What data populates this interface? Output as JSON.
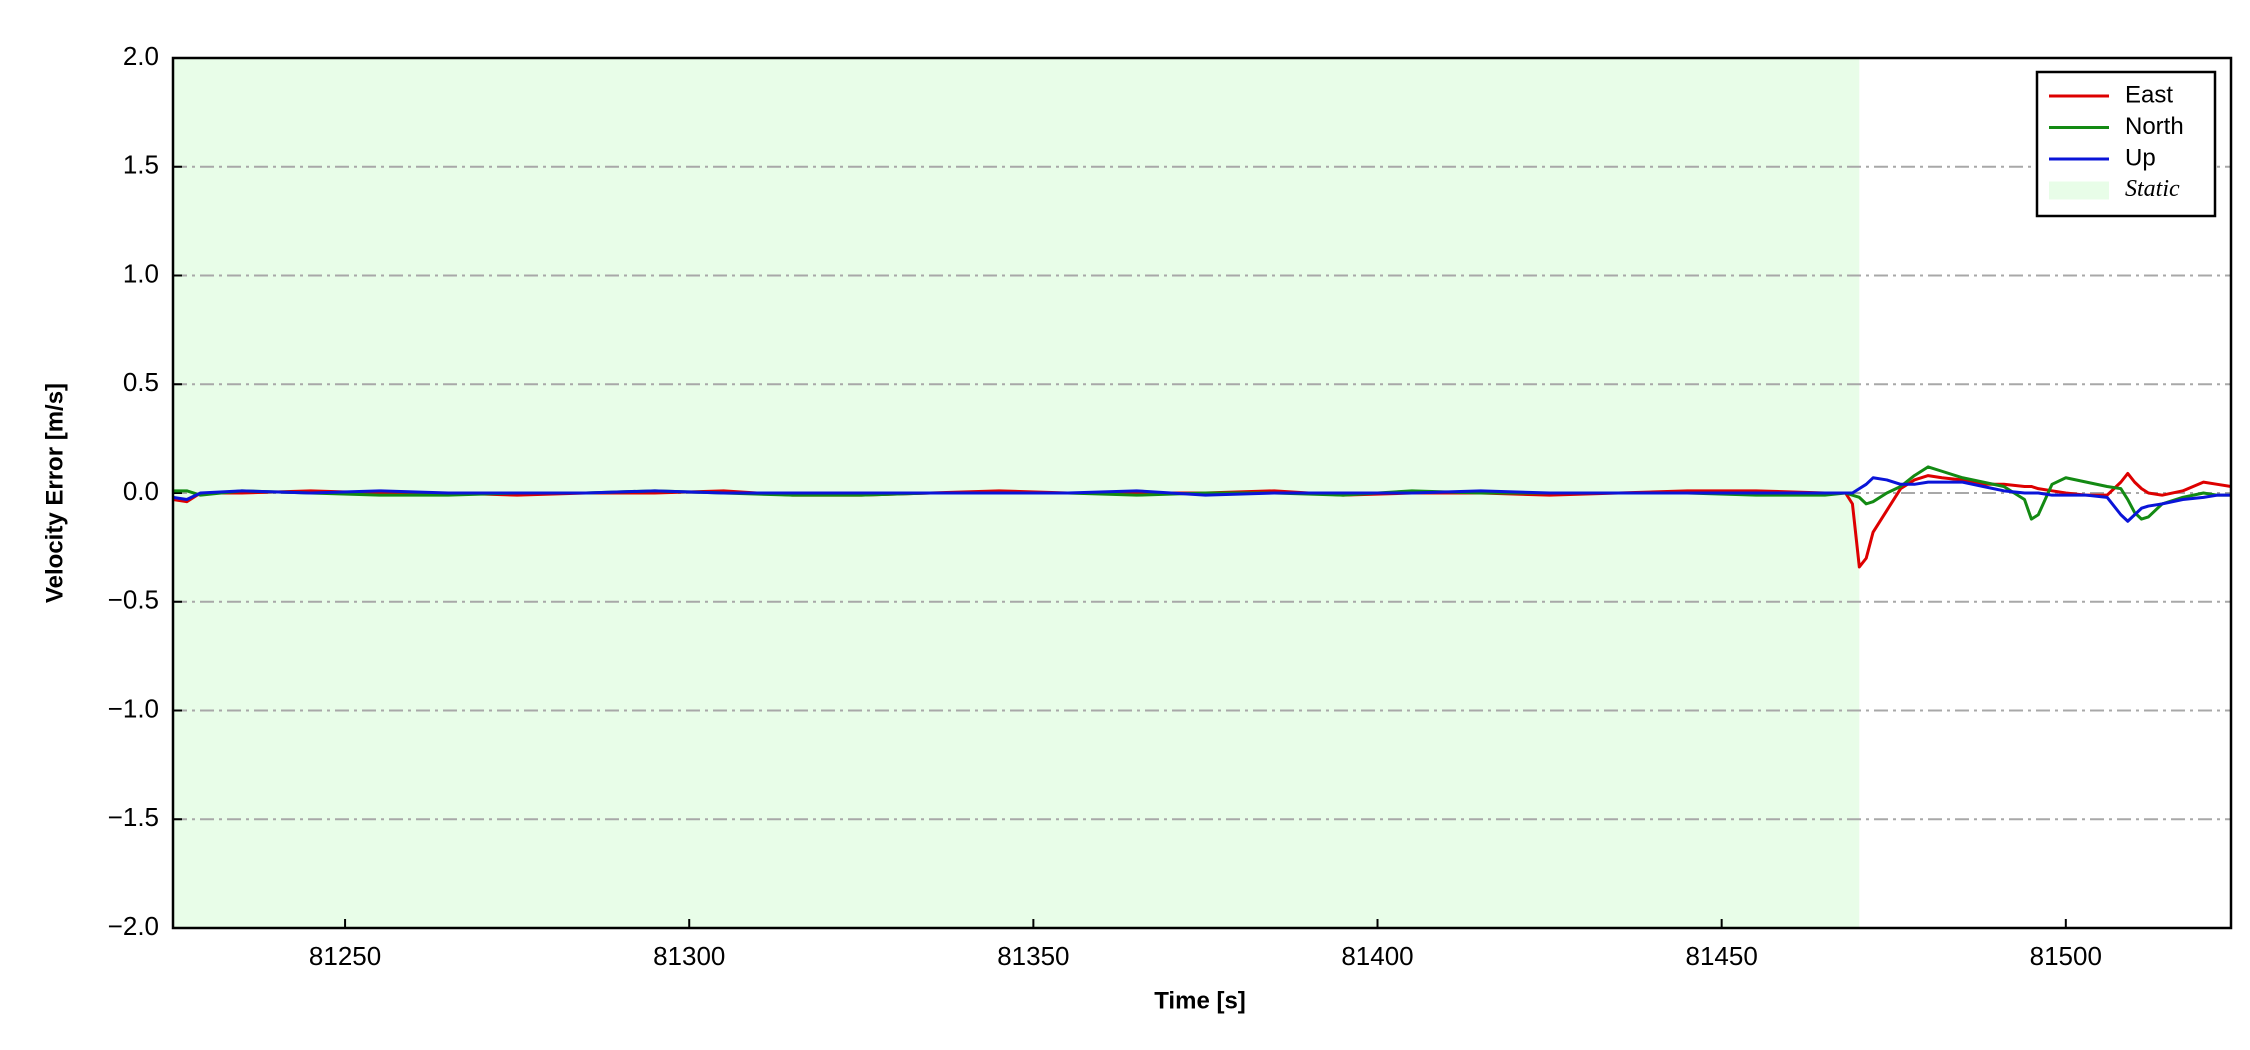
{
  "chart_data": {
    "type": "line",
    "xlabel": "Time [s]",
    "ylabel": "Velocity Error [m/s]",
    "x": [
      81225,
      81227,
      81229,
      81235,
      81245,
      81255,
      81265,
      81275,
      81285,
      81295,
      81305,
      81315,
      81325,
      81335,
      81345,
      81355,
      81365,
      81375,
      81385,
      81395,
      81405,
      81415,
      81425,
      81435,
      81445,
      81455,
      81465,
      81468,
      81469,
      81470,
      81471,
      81472,
      81474,
      81476,
      81478,
      81480,
      81482,
      81485,
      81488,
      81491,
      81494,
      81495,
      81496,
      81498,
      81500,
      81503,
      81506,
      81508,
      81509,
      81510,
      81511,
      81512,
      81514,
      81517,
      81520,
      81522,
      81524
    ],
    "series": [
      {
        "name": "East",
        "color": "#dd0000",
        "values": [
          -0.03,
          -0.04,
          0.0,
          0.0,
          0.01,
          0.0,
          0.0,
          -0.01,
          0.0,
          0.0,
          0.01,
          -0.01,
          -0.01,
          0.0,
          0.01,
          0.0,
          0.0,
          0.0,
          0.01,
          -0.01,
          0.0,
          0.0,
          -0.01,
          0.0,
          0.01,
          0.01,
          0.0,
          0,
          -0.05,
          -0.34,
          -0.3,
          -0.18,
          -0.08,
          0.02,
          0.06,
          0.08,
          0.07,
          0.06,
          0.04,
          0.04,
          0.03,
          0.03,
          0.02,
          0.01,
          0.0,
          -0.01,
          -0.01,
          0.05,
          0.09,
          0.05,
          0.02,
          0,
          -0.01,
          0.01,
          0.05,
          0.04,
          0.03
        ]
      },
      {
        "name": "North",
        "color": "#138a13",
        "values": [
          0.01,
          0.01,
          -0.01,
          0.01,
          0.0,
          -0.01,
          -0.01,
          0.0,
          0.0,
          0.01,
          0.0,
          -0.01,
          -0.01,
          0.0,
          0.0,
          0.0,
          -0.01,
          0.0,
          0.0,
          -0.01,
          0.01,
          0.0,
          0.0,
          0.0,
          0.0,
          -0.01,
          -0.01,
          0,
          -0.01,
          -0.02,
          -0.05,
          -0.04,
          0,
          0.03,
          0.08,
          0.12,
          0.1,
          0.07,
          0.05,
          0.03,
          -0.03,
          -0.12,
          -0.1,
          0.04,
          0.07,
          0.05,
          0.03,
          0.02,
          -0.03,
          -0.09,
          -0.12,
          -0.11,
          -0.05,
          -0.02,
          0,
          -0.01,
          -0.01
        ]
      },
      {
        "name": "Up",
        "color": "#0a14d8",
        "values": [
          -0.02,
          -0.03,
          0.0,
          0.01,
          0.0,
          0.01,
          0.0,
          0.0,
          0.0,
          0.01,
          0.0,
          0.0,
          0.0,
          0.0,
          0.0,
          0.0,
          0.01,
          -0.01,
          0.0,
          0.0,
          0.0,
          0.01,
          0.0,
          0.0,
          0.0,
          0.0,
          0.0,
          0,
          0,
          0.02,
          0.04,
          0.07,
          0.06,
          0.04,
          0.04,
          0.05,
          0.05,
          0.05,
          0.03,
          0.01,
          0,
          0,
          0,
          -0.01,
          -0.01,
          -0.01,
          -0.02,
          -0.1,
          -0.13,
          -0.1,
          -0.07,
          -0.06,
          -0.05,
          -0.03,
          -0.02,
          -0.01,
          -0.01
        ]
      }
    ],
    "spans": [
      {
        "name": "Static",
        "start": 81225,
        "end": 81470,
        "color": "#e8fde8"
      }
    ],
    "xlim": [
      81225,
      81524
    ],
    "xticks": [
      81250,
      81300,
      81350,
      81400,
      81450,
      81500
    ],
    "ylim": [
      -2.0,
      2.0
    ],
    "yticks": [
      {
        "value": -2.0,
        "label": "−2.0"
      },
      {
        "value": -1.5,
        "label": "−1.5"
      },
      {
        "value": -1.0,
        "label": "−1.0"
      },
      {
        "value": -0.5,
        "label": "−0.5"
      },
      {
        "value": 0.0,
        "label": "0.0"
      },
      {
        "value": 0.5,
        "label": "0.5"
      },
      {
        "value": 1.0,
        "label": "1.0"
      },
      {
        "value": 1.5,
        "label": "1.5"
      },
      {
        "value": 2.0,
        "label": "2.0"
      }
    ],
    "grid": "y",
    "legend": "upper right"
  }
}
